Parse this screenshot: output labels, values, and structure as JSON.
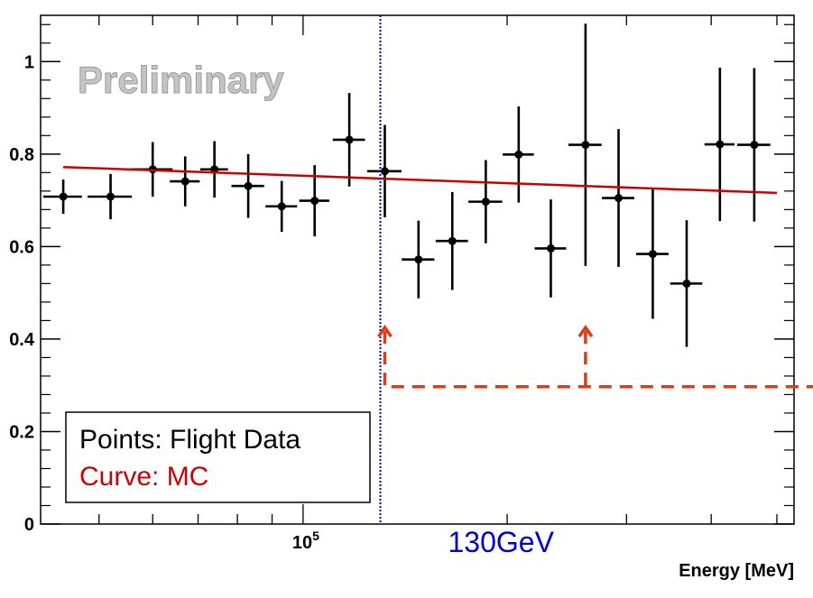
{
  "chart_data": {
    "type": "scatter",
    "title": "",
    "xlabel": "Energy [MeV]",
    "ylabel": "",
    "x_scale": "log",
    "ylim": [
      0,
      1.1
    ],
    "y_ticks": [
      0,
      0.2,
      0.4,
      0.6,
      0.8,
      1
    ],
    "y_tick_labels": [
      "0",
      "0.2",
      "0.4",
      "0.6",
      "0.8",
      "1"
    ],
    "x_major_tick_label": "10⁵",
    "x_major_tick_value": 100000,
    "watermark": "Preliminary",
    "legend": {
      "position": "bottom-left",
      "entries": [
        {
          "label": "Points: Flight Data",
          "color": "#000000"
        },
        {
          "label": "Curve: MC",
          "color": "#cc0000"
        }
      ]
    },
    "annotation": {
      "label": "130GeV",
      "x_value": 130000,
      "color": "#0000cc"
    },
    "series": [
      {
        "name": "Flight Data",
        "color": "#000000",
        "x": [
          44280,
          52000,
          60000,
          67000,
          74000,
          83000,
          93000,
          104000,
          117000,
          132000,
          148000,
          166000,
          186000,
          208000,
          232000,
          261000,
          292000,
          328000,
          368000,
          412000,
          463000
        ],
        "x_err_low": [
          2900,
          3900,
          4200,
          3400,
          3500,
          4600,
          5000,
          5300,
          6400,
          7700,
          8200,
          9100,
          10700,
          11000,
          12400,
          14700,
          16000,
          18000,
          20000,
          21000,
          26000
        ],
        "x_err_high": [
          2900,
          3900,
          4200,
          3400,
          3500,
          4600,
          5000,
          5300,
          6400,
          7700,
          8200,
          9100,
          10700,
          11000,
          12400,
          14700,
          16000,
          18000,
          20000,
          21000,
          26000
        ],
        "y": [
          0.708,
          0.708,
          0.767,
          0.741,
          0.767,
          0.731,
          0.687,
          0.699,
          0.831,
          0.763,
          0.572,
          0.612,
          0.697,
          0.799,
          0.596,
          0.82,
          0.705,
          0.584,
          0.52,
          0.821,
          0.82
        ],
        "y_err_low": [
          0.037,
          0.049,
          0.059,
          0.054,
          0.061,
          0.069,
          0.055,
          0.077,
          0.101,
          0.1,
          0.084,
          0.106,
          0.09,
          0.104,
          0.106,
          0.262,
          0.149,
          0.14,
          0.137,
          0.166,
          0.166
        ],
        "y_err_high": [
          0.037,
          0.049,
          0.059,
          0.054,
          0.061,
          0.069,
          0.055,
          0.077,
          0.101,
          0.1,
          0.084,
          0.106,
          0.09,
          0.104,
          0.106,
          0.262,
          0.149,
          0.14,
          0.137,
          0.166,
          0.166
        ]
      },
      {
        "name": "MC",
        "color": "#cc0000",
        "type": "line",
        "x": [
          44280,
          500000
        ],
        "y": [
          0.772,
          0.716
        ]
      }
    ]
  }
}
